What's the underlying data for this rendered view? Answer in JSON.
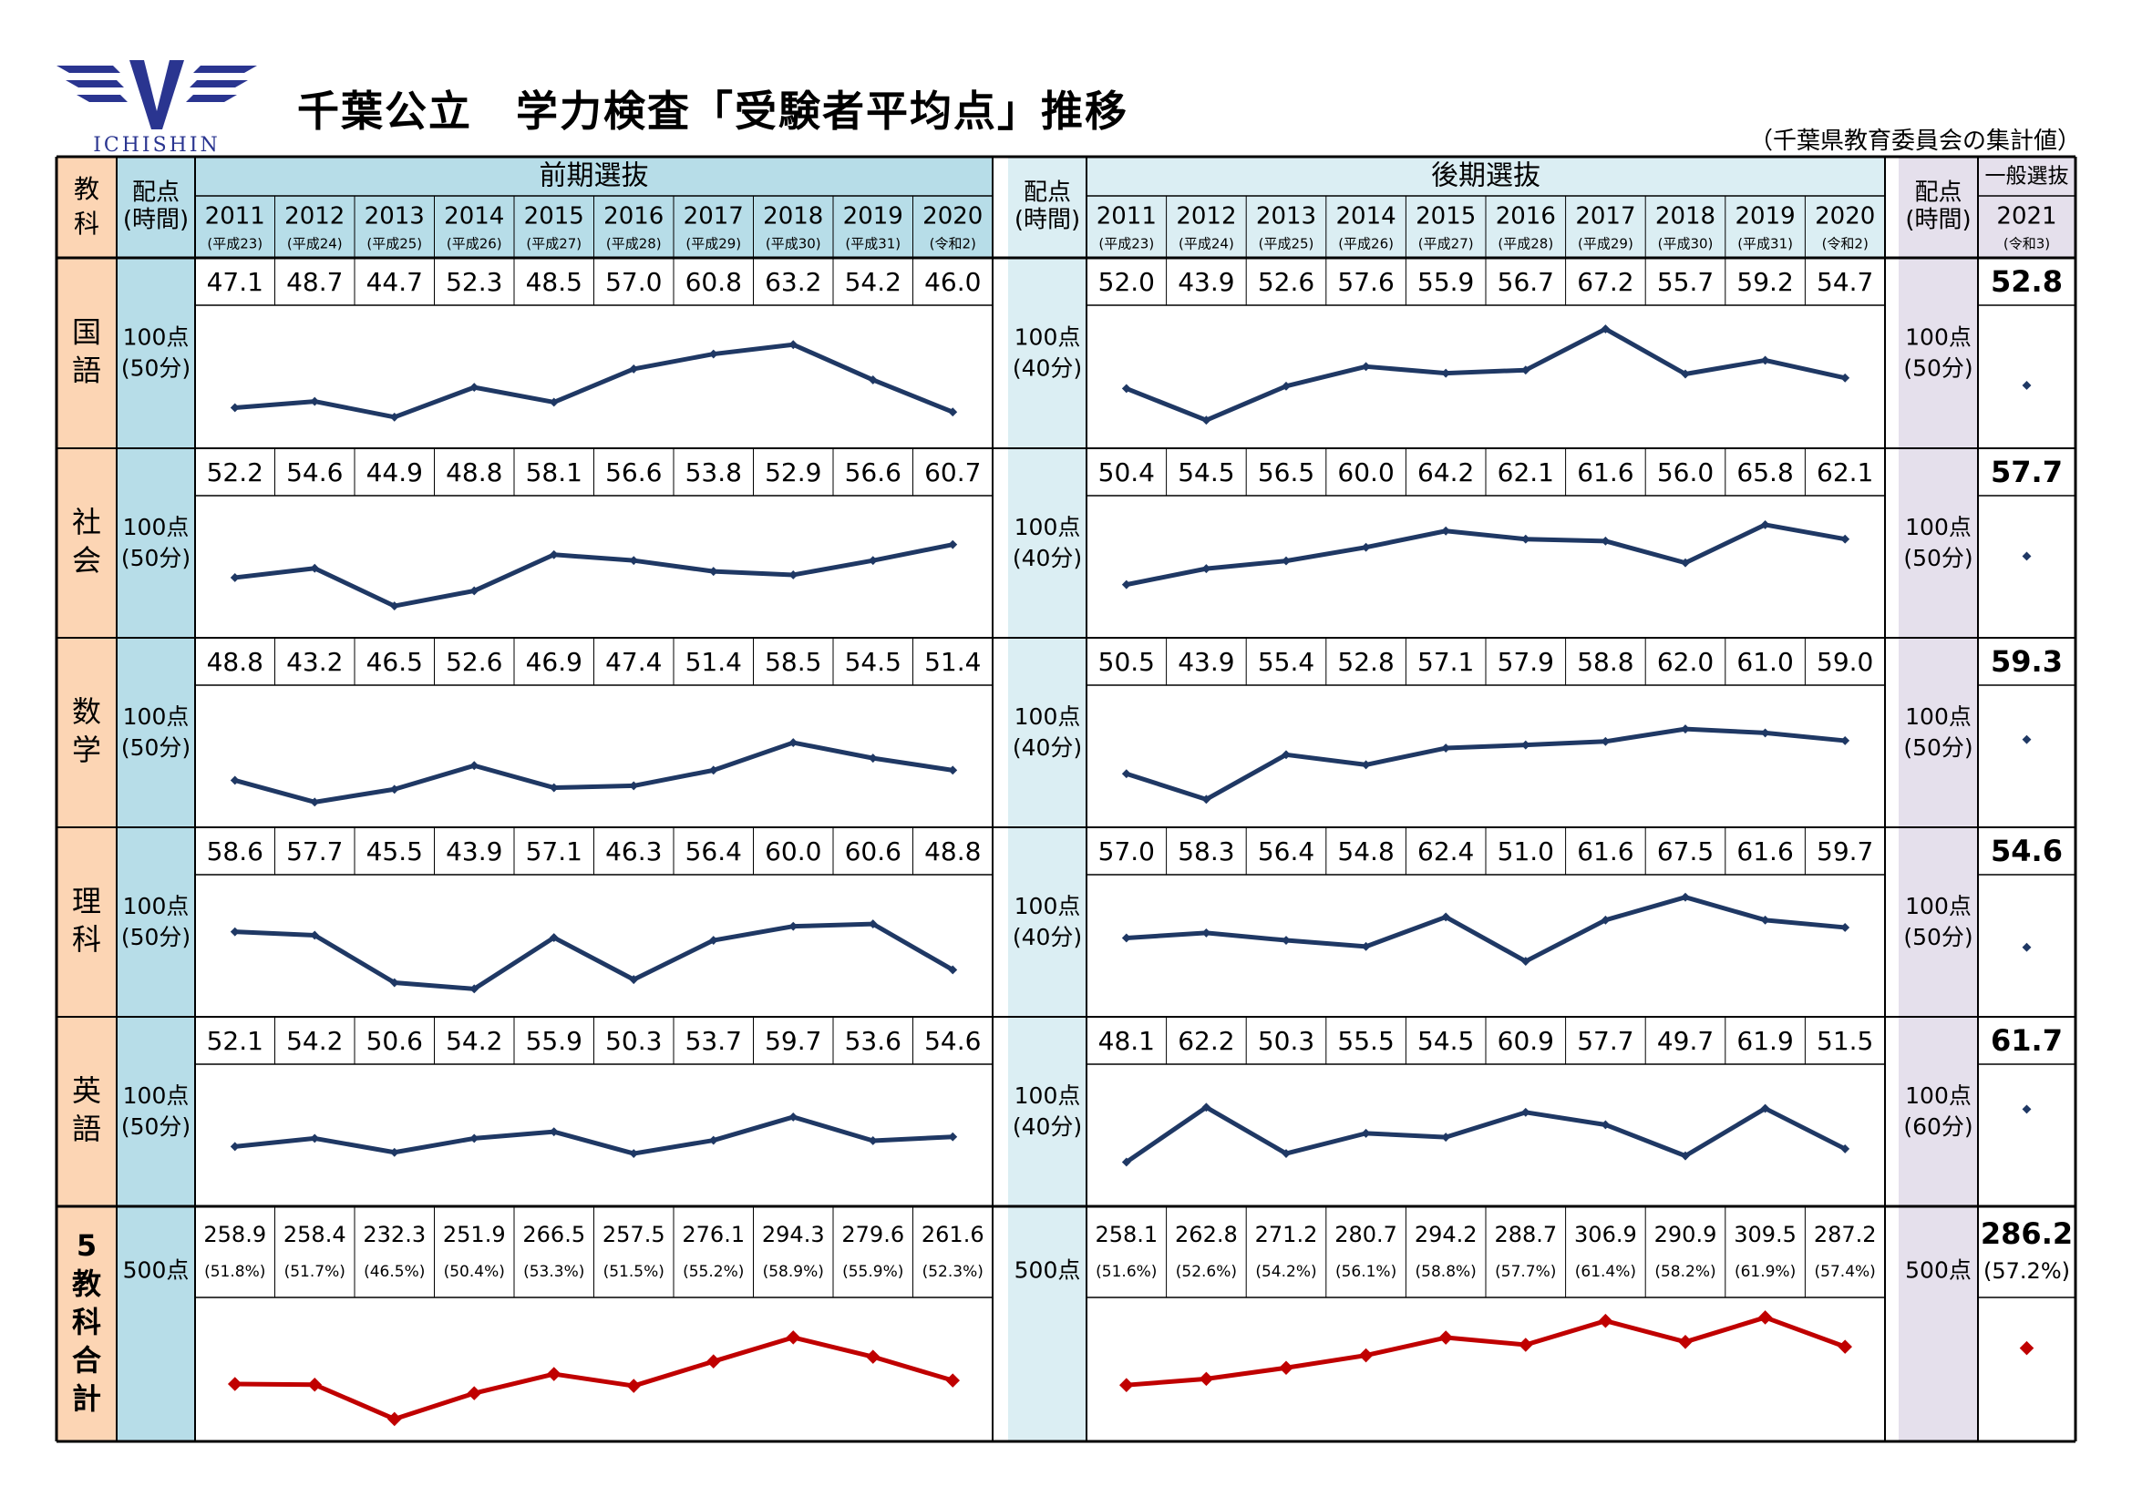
{
  "logo": {
    "text": "ICHISHIN",
    "color": "#2a3590"
  },
  "header": {
    "title": "千葉公立　学力検査「受験者平均点」推移",
    "source": "（千葉県教育委員会の集計値）"
  },
  "columns": {
    "subject": "教科",
    "points": "配点",
    "time": "(時間)",
    "early_label": "前期選抜",
    "late_label": "後期選抜",
    "general_label": "一般選抜"
  },
  "years": [
    "2011",
    "2012",
    "2013",
    "2014",
    "2015",
    "2016",
    "2017",
    "2018",
    "2019",
    "2020"
  ],
  "eras": [
    "(平成23)",
    "(平成24)",
    "(平成25)",
    "(平成26)",
    "(平成27)",
    "(平成28)",
    "(平成29)",
    "(平成30)",
    "(平成31)",
    "(令和2)"
  ],
  "general_year": "2021",
  "general_era": "(令和3)",
  "colors": {
    "early_header": "#b7dde8",
    "late_header": "#dbeef3",
    "general_header": "#e5e0ec",
    "subject_bg": "#fcd5b4",
    "line": "#1f3864",
    "total_line": "#c00000"
  },
  "chart_data": [
    {
      "type": "line",
      "subject": "国語",
      "early_alloc": "100点",
      "early_time": "(50分)",
      "late_alloc": "100点",
      "late_time": "(40分)",
      "general_alloc": "100点",
      "general_time": "(50分)",
      "early": [
        47.1,
        48.7,
        44.7,
        52.3,
        48.5,
        57.0,
        60.8,
        63.2,
        54.2,
        46.0
      ],
      "late": [
        52.0,
        43.9,
        52.6,
        57.6,
        55.9,
        56.7,
        67.2,
        55.7,
        59.2,
        54.7
      ],
      "general": 52.8
    },
    {
      "type": "line",
      "subject": "社会",
      "early_alloc": "100点",
      "early_time": "(50分)",
      "late_alloc": "100点",
      "late_time": "(40分)",
      "general_alloc": "100点",
      "general_time": "(50分)",
      "early": [
        52.2,
        54.6,
        44.9,
        48.8,
        58.1,
        56.6,
        53.8,
        52.9,
        56.6,
        60.7
      ],
      "late": [
        50.4,
        54.5,
        56.5,
        60.0,
        64.2,
        62.1,
        61.6,
        56.0,
        65.8,
        62.1
      ],
      "general": 57.7
    },
    {
      "type": "line",
      "subject": "数学",
      "early_alloc": "100点",
      "early_time": "(50分)",
      "late_alloc": "100点",
      "late_time": "(40分)",
      "general_alloc": "100点",
      "general_time": "(50分)",
      "early": [
        48.8,
        43.2,
        46.5,
        52.6,
        46.9,
        47.4,
        51.4,
        58.5,
        54.5,
        51.4
      ],
      "late": [
        50.5,
        43.9,
        55.4,
        52.8,
        57.1,
        57.9,
        58.8,
        62.0,
        61.0,
        59.0
      ],
      "general": 59.3
    },
    {
      "type": "line",
      "subject": "理科",
      "early_alloc": "100点",
      "early_time": "(50分)",
      "late_alloc": "100点",
      "late_time": "(40分)",
      "general_alloc": "100点",
      "general_time": "(50分)",
      "early": [
        58.6,
        57.7,
        45.5,
        43.9,
        57.1,
        46.3,
        56.4,
        60.0,
        60.6,
        48.8
      ],
      "late": [
        57.0,
        58.3,
        56.4,
        54.8,
        62.4,
        51.0,
        61.6,
        67.5,
        61.6,
        59.7
      ],
      "general": 54.6
    },
    {
      "type": "line",
      "subject": "英語",
      "early_alloc": "100点",
      "early_time": "(50分)",
      "late_alloc": "100点",
      "late_time": "(40分)",
      "general_alloc": "100点",
      "general_time": "(60分)",
      "early": [
        52.1,
        54.2,
        50.6,
        54.2,
        55.9,
        50.3,
        53.7,
        59.7,
        53.6,
        54.6
      ],
      "late": [
        48.1,
        62.2,
        50.3,
        55.5,
        54.5,
        60.9,
        57.7,
        49.7,
        61.9,
        51.5
      ],
      "general": 61.7
    },
    {
      "type": "line",
      "subject": "5教科合計",
      "early_alloc": "500点",
      "early_time": "",
      "late_alloc": "500点",
      "late_time": "",
      "general_alloc": "500点",
      "general_time": "",
      "early": [
        258.9,
        258.4,
        232.3,
        251.9,
        266.5,
        257.5,
        276.1,
        294.3,
        279.6,
        261.6
      ],
      "early_pct": [
        "(51.8%)",
        "(51.7%)",
        "(46.5%)",
        "(50.4%)",
        "(53.3%)",
        "(51.5%)",
        "(55.2%)",
        "(58.9%)",
        "(55.9%)",
        "(52.3%)"
      ],
      "late": [
        258.1,
        262.8,
        271.2,
        280.7,
        294.2,
        288.7,
        306.9,
        290.9,
        309.5,
        287.2
      ],
      "late_pct": [
        "(51.6%)",
        "(52.6%)",
        "(54.2%)",
        "(56.1%)",
        "(58.8%)",
        "(57.7%)",
        "(61.4%)",
        "(58.2%)",
        "(61.9%)",
        "(57.4%)"
      ],
      "general": 286.2,
      "general_pct": "(57.2%)"
    }
  ]
}
